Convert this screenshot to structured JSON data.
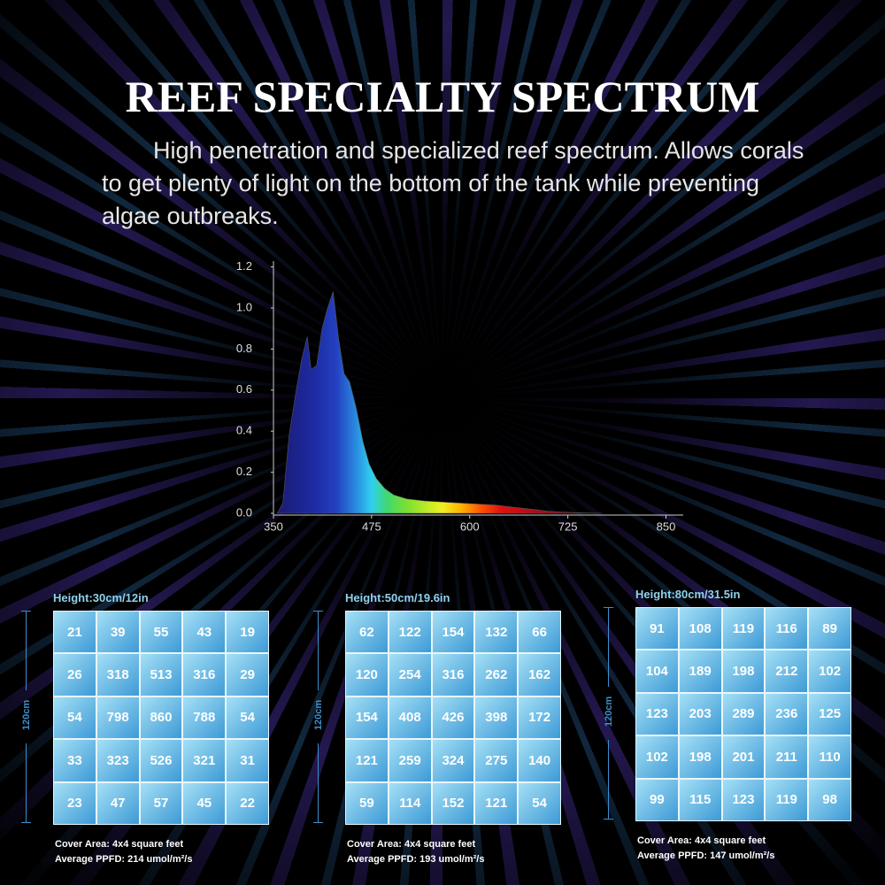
{
  "header": {
    "title": "REEF SPECIALTY SPECTRUM",
    "description": "High penetration and specialized reef spectrum. Allows corals to get plenty of light on the bottom of the tank while preventing algae outbreaks."
  },
  "chart_data": {
    "type": "area",
    "x": [
      355,
      362,
      370,
      379,
      386,
      393,
      398,
      405,
      412,
      419,
      426,
      433,
      440,
      447,
      455,
      464,
      472,
      481,
      492,
      503,
      520,
      543,
      565,
      588,
      610,
      633,
      655,
      678,
      700,
      723,
      745,
      769
    ],
    "values": [
      0,
      0.05,
      0.38,
      0.6,
      0.75,
      0.86,
      0.7,
      0.72,
      0.9,
      1.0,
      1.08,
      0.85,
      0.68,
      0.64,
      0.52,
      0.35,
      0.24,
      0.17,
      0.12,
      0.09,
      0.07,
      0.06,
      0.055,
      0.05,
      0.045,
      0.04,
      0.03,
      0.02,
      0.01,
      0.005,
      0.002,
      0
    ],
    "xlim": [
      350,
      872
    ],
    "ylim": [
      0,
      1.25
    ],
    "xticks": [
      350,
      475,
      600,
      725,
      850
    ],
    "yticks": [
      {
        "value": 0,
        "label": "0.0"
      },
      0.2,
      0.4,
      0.6,
      0.8,
      {
        "value": 1,
        "label": "1.0"
      },
      1.2
    ]
  },
  "panels": [
    {
      "height": "Height:30cm/12in",
      "side": "120cm",
      "rows": [
        [
          21,
          39,
          55,
          43,
          19
        ],
        [
          26,
          318,
          513,
          316,
          29
        ],
        [
          54,
          798,
          860,
          788,
          54
        ],
        [
          33,
          323,
          526,
          321,
          31
        ],
        [
          23,
          47,
          57,
          45,
          22
        ]
      ],
      "cover": "Cover Area: 4x4 square feet",
      "ppfd": "Average PPFD: 214 umol/m²/s"
    },
    {
      "height": "Height:50cm/19.6in",
      "side": "120cm",
      "rows": [
        [
          62,
          122,
          154,
          132,
          66
        ],
        [
          120,
          254,
          316,
          262,
          162
        ],
        [
          154,
          408,
          426,
          398,
          172
        ],
        [
          121,
          259,
          324,
          275,
          140
        ],
        [
          59,
          114,
          152,
          121,
          54
        ]
      ],
      "cover": "Cover Area: 4x4 square feet",
      "ppfd": "Average PPFD: 193 umol/m²/s"
    },
    {
      "height": "Height:80cm/31.5in",
      "side": "120cm",
      "rows": [
        [
          91,
          108,
          119,
          116,
          89
        ],
        [
          104,
          189,
          198,
          212,
          102
        ],
        [
          123,
          203,
          289,
          236,
          125
        ],
        [
          102,
          198,
          201,
          211,
          110
        ],
        [
          99,
          115,
          123,
          119,
          98
        ]
      ],
      "cover": "Cover Area: 4x4 square feet",
      "ppfd": "Average PPFD: 147 umol/m²/s"
    }
  ]
}
